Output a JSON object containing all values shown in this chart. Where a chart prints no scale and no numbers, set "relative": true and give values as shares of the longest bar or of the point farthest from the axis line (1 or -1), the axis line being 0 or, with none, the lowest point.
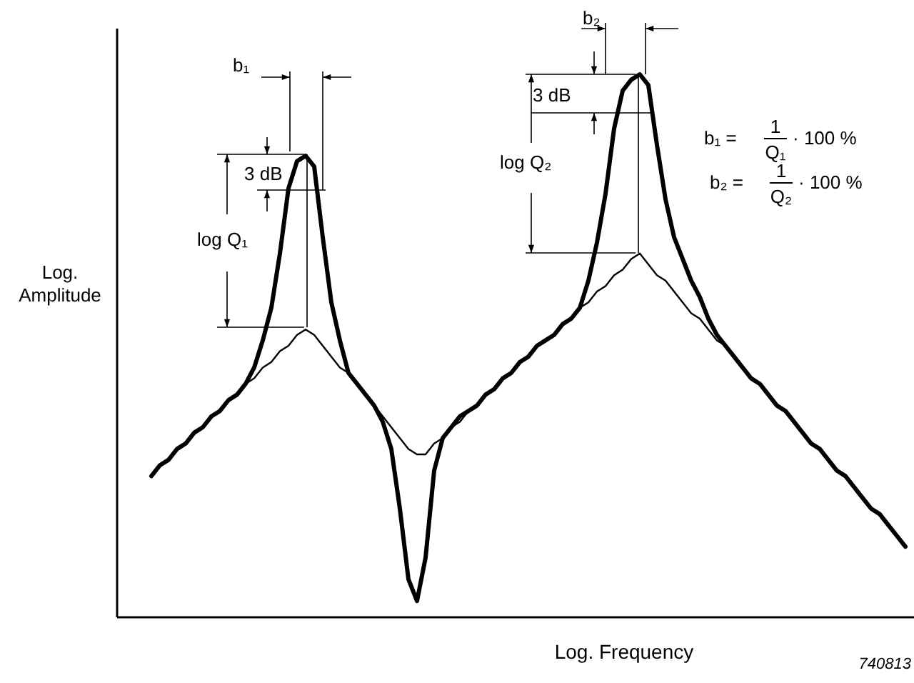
{
  "chart_data": {
    "type": "line",
    "relative": true,
    "xlabel": "Log. Frequency",
    "ylabel": "Log. Amplitude",
    "marker": "none",
    "line_style": "solid",
    "categories": [
      null,
      null,
      null,
      null,
      null,
      null,
      null,
      null,
      null,
      null,
      null,
      null,
      null,
      null,
      null,
      null,
      null,
      null,
      null,
      null,
      null,
      null,
      null,
      null,
      null,
      null,
      null,
      null,
      null,
      null,
      null,
      null,
      null,
      null,
      null,
      null,
      null,
      null,
      null,
      null,
      null,
      null,
      null,
      null,
      null,
      null,
      null,
      null,
      null,
      null,
      null,
      null,
      null,
      null,
      null,
      null,
      null,
      null,
      null,
      null,
      null,
      null,
      null,
      null,
      null,
      null,
      null,
      null,
      null,
      null,
      null,
      null,
      null,
      null,
      null,
      null,
      null,
      null,
      null,
      null,
      null,
      null,
      null,
      null,
      null,
      null,
      null,
      null,
      null
    ],
    "series": [
      {
        "color": "#000000",
        "values": [
          0.26,
          0.28,
          0.29,
          0.31,
          0.32,
          0.34,
          0.35,
          0.37,
          0.38,
          0.4,
          0.41,
          0.43,
          0.46,
          0.51,
          0.57,
          0.67,
          0.79,
          0.84,
          0.85,
          0.83,
          0.7,
          0.58,
          0.51,
          0.45,
          0.43,
          0.41,
          0.39,
          0.36,
          0.31,
          0.2,
          0.07,
          0.03,
          0.11,
          0.27,
          0.33,
          0.35,
          0.37,
          0.38,
          0.39,
          0.41,
          0.42,
          0.44,
          0.45,
          0.47,
          0.48,
          0.5,
          0.51,
          0.52,
          0.54,
          0.55,
          0.57,
          0.62,
          0.69,
          0.78,
          0.9,
          0.97,
          0.99,
          1,
          0.98,
          0.87,
          0.77,
          0.7,
          0.66,
          0.62,
          0.59,
          0.55,
          0.52,
          0.5,
          0.48,
          0.46,
          0.44,
          0.43,
          0.41,
          0.39,
          0.38,
          0.36,
          0.34,
          0.32,
          0.31,
          0.29,
          0.27,
          0.26,
          0.24,
          0.22,
          0.2,
          0.19,
          0.17,
          0.15,
          0.13
        ]
      },
      {
        "color": "#000000",
        "values": [
          0.26,
          0.28,
          0.29,
          0.31,
          0.32,
          0.34,
          0.35,
          0.37,
          0.38,
          0.4,
          0.41,
          0.43,
          0.44,
          0.46,
          0.47,
          0.49,
          0.5,
          0.52,
          0.53,
          0.52,
          0.5,
          0.48,
          0.46,
          0.45,
          0.43,
          0.41,
          0.39,
          0.37,
          0.35,
          0.33,
          0.31,
          0.3,
          0.3,
          0.32,
          0.33,
          0.35,
          0.36,
          0.38,
          0.39,
          0.41,
          0.42,
          0.44,
          0.45,
          0.47,
          0.48,
          0.5,
          0.51,
          0.52,
          0.54,
          0.55,
          0.57,
          0.58,
          0.6,
          0.61,
          0.63,
          0.64,
          0.66,
          0.67,
          0.65,
          0.63,
          0.62,
          0.6,
          0.58,
          0.56,
          0.55,
          0.53,
          0.51,
          0.5,
          0.48,
          0.46,
          0.44,
          0.43,
          0.41,
          0.39,
          0.38,
          0.36,
          0.34,
          0.32,
          0.31,
          0.29,
          0.27,
          0.26,
          0.24,
          0.22,
          0.2,
          0.19,
          0.17,
          0.15,
          0.13
        ]
      }
    ],
    "annotations": [
      "b₁",
      "3 dB",
      "log Q₁",
      "b₂",
      "3 dB",
      "log Q₂",
      "b₁ =",
      "1",
      "Q₁",
      "· 100 %",
      "b₂ =",
      "1",
      "Q₂",
      "· 100 %",
      "740813"
    ]
  }
}
